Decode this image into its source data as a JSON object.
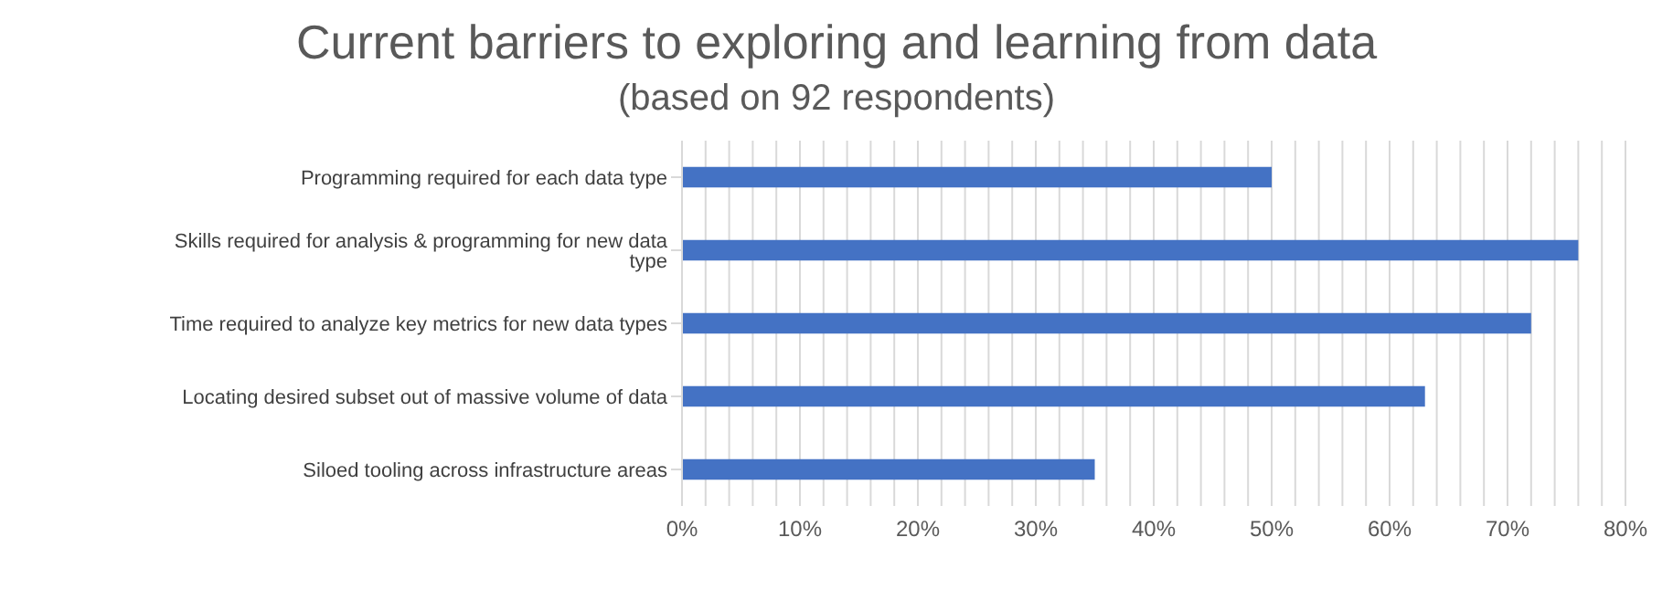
{
  "chart_data": {
    "type": "bar",
    "orientation": "horizontal",
    "title": "Current barriers to exploring and learning from data",
    "subtitle": "(based on 92 respondents)",
    "categories": [
      "Programming required for each data type",
      "Skills required for analysis & programming for new data type",
      "Time required to analyze key metrics for new data types",
      "Locating desired subset out of massive volume of data",
      "Siloed tooling across infrastructure areas"
    ],
    "values": [
      50,
      76,
      72,
      63,
      35
    ],
    "color": "#4472c4",
    "xlim": [
      0,
      80
    ],
    "xticks": [
      {
        "value": 0,
        "label": "0%"
      },
      {
        "value": 2,
        "label": null
      },
      {
        "value": 4,
        "label": null
      },
      {
        "value": 6,
        "label": null
      },
      {
        "value": 8,
        "label": null
      },
      {
        "value": 10,
        "label": "10%"
      },
      {
        "value": 12,
        "label": null
      },
      {
        "value": 14,
        "label": null
      },
      {
        "value": 16,
        "label": null
      },
      {
        "value": 18,
        "label": null
      },
      {
        "value": 20,
        "label": "20%"
      },
      {
        "value": 22,
        "label": null
      },
      {
        "value": 24,
        "label": null
      },
      {
        "value": 26,
        "label": null
      },
      {
        "value": 28,
        "label": null
      },
      {
        "value": 30,
        "label": "30%"
      },
      {
        "value": 32,
        "label": null
      },
      {
        "value": 34,
        "label": null
      },
      {
        "value": 36,
        "label": null
      },
      {
        "value": 38,
        "label": null
      },
      {
        "value": 40,
        "label": "40%"
      },
      {
        "value": 42,
        "label": null
      },
      {
        "value": 44,
        "label": null
      },
      {
        "value": 46,
        "label": null
      },
      {
        "value": 48,
        "label": null
      },
      {
        "value": 50,
        "label": "50%"
      },
      {
        "value": 52,
        "label": null
      },
      {
        "value": 54,
        "label": null
      },
      {
        "value": 56,
        "label": null
      },
      {
        "value": 58,
        "label": null
      },
      {
        "value": 60,
        "label": "60%"
      },
      {
        "value": 62,
        "label": null
      },
      {
        "value": 64,
        "label": null
      },
      {
        "value": 66,
        "label": null
      },
      {
        "value": 68,
        "label": null
      },
      {
        "value": 70,
        "label": "70%"
      },
      {
        "value": 72,
        "label": null
      },
      {
        "value": 74,
        "label": null
      },
      {
        "value": 76,
        "label": null
      },
      {
        "value": 78,
        "label": null
      },
      {
        "value": 80,
        "label": "80%"
      }
    ],
    "grid": "x"
  }
}
